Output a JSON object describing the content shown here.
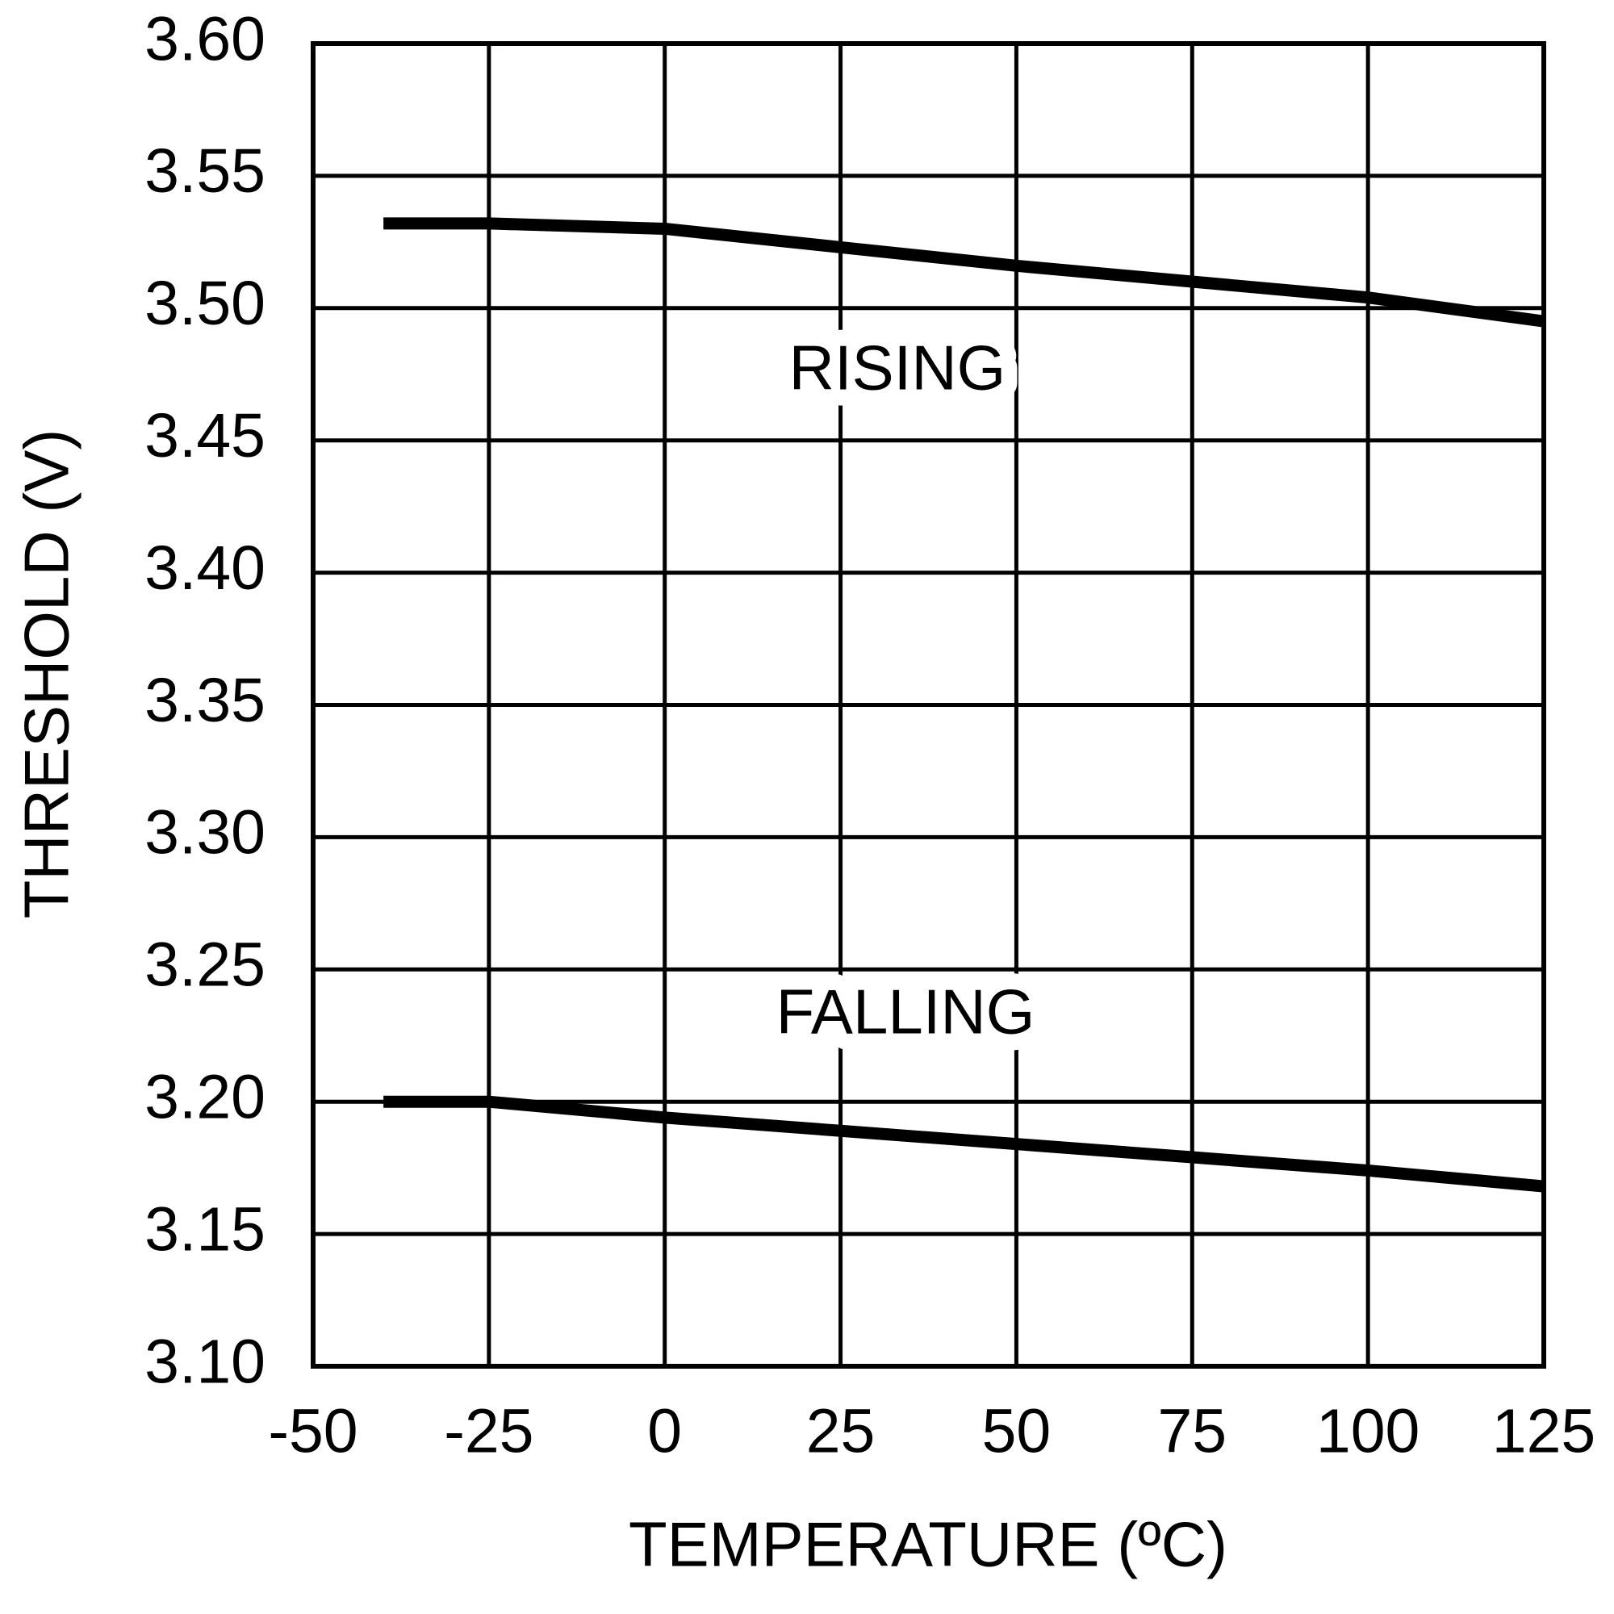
{
  "chart_data": {
    "type": "line",
    "xlabel": "TEMPERATURE (ºC)",
    "ylabel": "THRESHOLD (V)",
    "x": [
      -40,
      -25,
      0,
      25,
      50,
      75,
      100,
      125
    ],
    "series": [
      {
        "name": "RISING",
        "color": "#000000",
        "values": [
          3.532,
          3.532,
          3.53,
          3.523,
          3.516,
          3.51,
          3.504,
          3.495
        ]
      },
      {
        "name": "FALLING",
        "color": "#000000",
        "values": [
          3.2,
          3.2,
          3.194,
          3.189,
          3.184,
          3.179,
          3.174,
          3.168
        ]
      }
    ],
    "xlim": [
      -50,
      125
    ],
    "xticks": [
      -50,
      -25,
      0,
      25,
      50,
      75,
      100,
      125
    ],
    "ylim": [
      3.1,
      3.6
    ],
    "yticks": [
      {
        "value": 3.1,
        "label": "3.10"
      },
      3.15,
      {
        "value": 3.2,
        "label": "3.20"
      },
      3.25,
      {
        "value": 3.3,
        "label": "3.30"
      },
      3.35,
      {
        "value": 3.4,
        "label": "3.40"
      },
      3.45,
      {
        "value": 3.5,
        "label": "3.50"
      },
      3.55,
      {
        "value": 3.6,
        "label": "3.60"
      }
    ],
    "grid": true
  }
}
